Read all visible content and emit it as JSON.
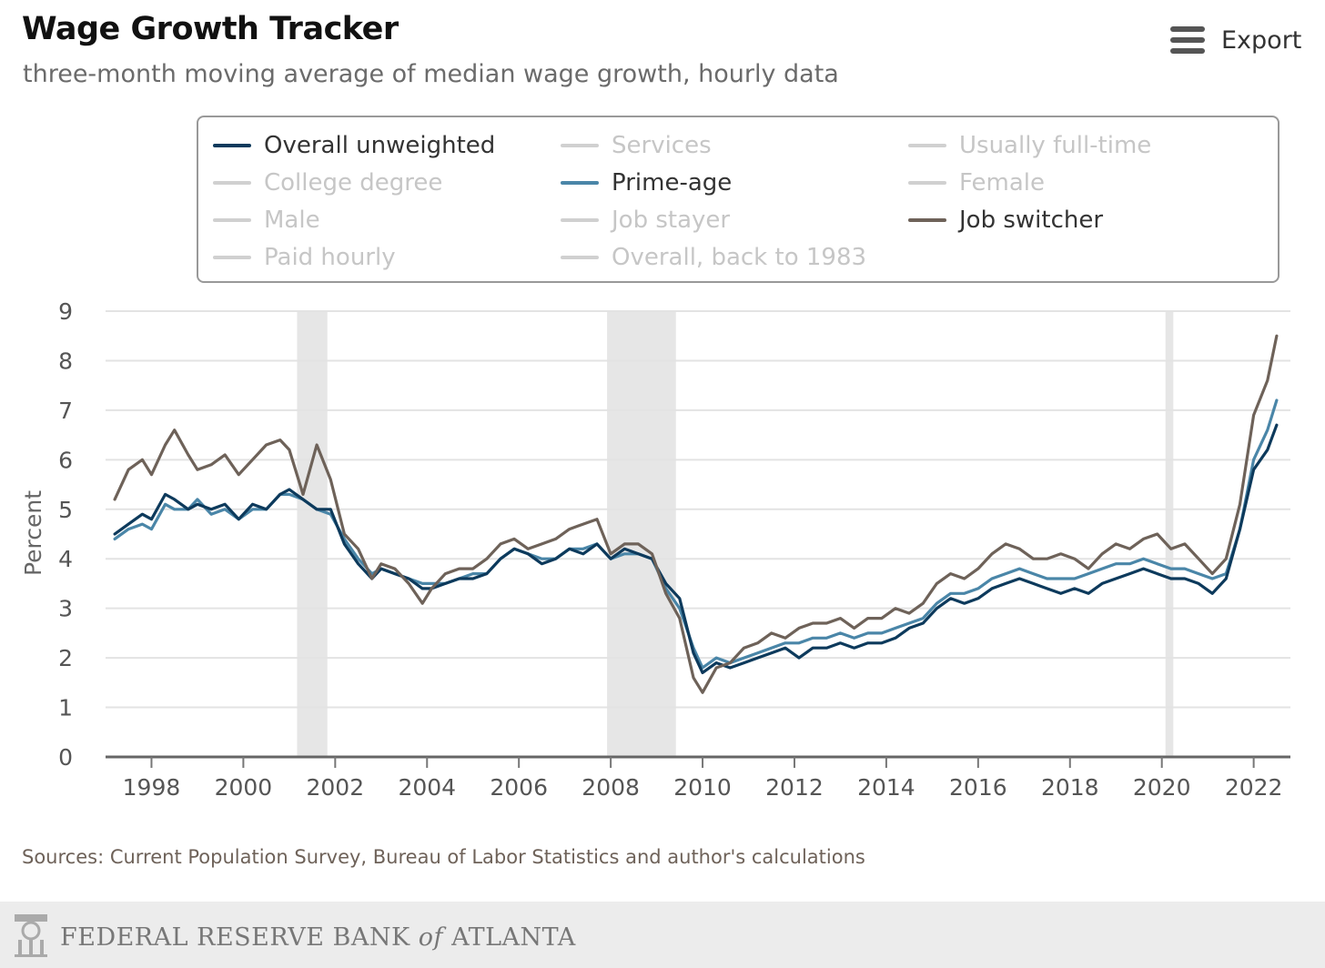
{
  "header": {
    "title": "Wage Growth Tracker",
    "subtitle": "three-month moving average of median wage growth, hourly data",
    "export_label": "Export",
    "menu_icon": "hamburger-menu-icon"
  },
  "legend": {
    "items": [
      {
        "label": "Overall unweighted",
        "active": true,
        "color": "#0d3a5c"
      },
      {
        "label": "Services",
        "active": false,
        "color": "#d0d0d0"
      },
      {
        "label": "Usually full-time",
        "active": false,
        "color": "#d0d0d0"
      },
      {
        "label": "College degree",
        "active": false,
        "color": "#d0d0d0"
      },
      {
        "label": "Prime-age",
        "active": true,
        "color": "#4a86a8"
      },
      {
        "label": "Female",
        "active": false,
        "color": "#d0d0d0"
      },
      {
        "label": "Male",
        "active": false,
        "color": "#d0d0d0"
      },
      {
        "label": "Job stayer",
        "active": false,
        "color": "#d0d0d0"
      },
      {
        "label": "Job switcher",
        "active": true,
        "color": "#6e6259"
      },
      {
        "label": "Paid hourly",
        "active": false,
        "color": "#d0d0d0"
      },
      {
        "label": "Overall, back to 1983",
        "active": false,
        "color": "#d0d0d0"
      }
    ]
  },
  "chart_data": {
    "type": "line",
    "title": "Wage Growth Tracker",
    "subtitle": "three-month moving average of median wage growth, hourly data",
    "ylabel": "Percent",
    "xlabel": "",
    "ylim": [
      0,
      9
    ],
    "yticks": [
      0,
      1,
      2,
      3,
      4,
      5,
      6,
      7,
      8,
      9
    ],
    "xlim": [
      1997.0,
      2022.8
    ],
    "xticks": [
      1998,
      2000,
      2002,
      2004,
      2006,
      2008,
      2010,
      2012,
      2014,
      2016,
      2018,
      2020,
      2022
    ],
    "grid": true,
    "recessions": [
      [
        2001.17,
        2001.83
      ],
      [
        2007.92,
        2009.42
      ],
      [
        2020.08,
        2020.25
      ]
    ],
    "series": [
      {
        "name": "Overall unweighted",
        "color": "#0d3a5c",
        "x": [
          1997.2,
          1997.5,
          1997.8,
          1998.0,
          1998.3,
          1998.5,
          1998.8,
          1999.0,
          1999.3,
          1999.6,
          1999.9,
          2000.2,
          2000.5,
          2000.8,
          2001.0,
          2001.3,
          2001.6,
          2001.9,
          2002.2,
          2002.5,
          2002.8,
          2003.0,
          2003.3,
          2003.6,
          2003.9,
          2004.1,
          2004.4,
          2004.7,
          2005.0,
          2005.3,
          2005.6,
          2005.9,
          2006.2,
          2006.5,
          2006.8,
          2007.1,
          2007.4,
          2007.7,
          2008.0,
          2008.3,
          2008.6,
          2008.9,
          2009.2,
          2009.5,
          2009.8,
          2010.0,
          2010.3,
          2010.6,
          2010.9,
          2011.2,
          2011.5,
          2011.8,
          2012.1,
          2012.4,
          2012.7,
          2013.0,
          2013.3,
          2013.6,
          2013.9,
          2014.2,
          2014.5,
          2014.8,
          2015.1,
          2015.4,
          2015.7,
          2016.0,
          2016.3,
          2016.6,
          2016.9,
          2017.2,
          2017.5,
          2017.8,
          2018.1,
          2018.4,
          2018.7,
          2019.0,
          2019.3,
          2019.6,
          2019.9,
          2020.2,
          2020.5,
          2020.8,
          2021.1,
          2021.4,
          2021.7,
          2022.0,
          2022.3,
          2022.5
        ],
        "values": [
          4.5,
          4.7,
          4.9,
          4.8,
          5.3,
          5.2,
          5.0,
          5.1,
          5.0,
          5.1,
          4.8,
          5.1,
          5.0,
          5.3,
          5.4,
          5.2,
          5.0,
          5.0,
          4.3,
          3.9,
          3.6,
          3.8,
          3.7,
          3.6,
          3.4,
          3.4,
          3.5,
          3.6,
          3.6,
          3.7,
          4.0,
          4.2,
          4.1,
          3.9,
          4.0,
          4.2,
          4.1,
          4.3,
          4.0,
          4.2,
          4.1,
          4.0,
          3.5,
          3.2,
          2.1,
          1.7,
          1.9,
          1.8,
          1.9,
          2.0,
          2.1,
          2.2,
          2.0,
          2.2,
          2.2,
          2.3,
          2.2,
          2.3,
          2.3,
          2.4,
          2.6,
          2.7,
          3.0,
          3.2,
          3.1,
          3.2,
          3.4,
          3.5,
          3.6,
          3.5,
          3.4,
          3.3,
          3.4,
          3.3,
          3.5,
          3.6,
          3.7,
          3.8,
          3.7,
          3.6,
          3.6,
          3.5,
          3.3,
          3.6,
          4.6,
          5.8,
          6.2,
          6.7
        ]
      },
      {
        "name": "Prime-age",
        "color": "#4a86a8",
        "x": [
          1997.2,
          1997.5,
          1997.8,
          1998.0,
          1998.3,
          1998.5,
          1998.8,
          1999.0,
          1999.3,
          1999.6,
          1999.9,
          2000.2,
          2000.5,
          2000.8,
          2001.0,
          2001.3,
          2001.6,
          2001.9,
          2002.2,
          2002.5,
          2002.8,
          2003.0,
          2003.3,
          2003.6,
          2003.9,
          2004.1,
          2004.4,
          2004.7,
          2005.0,
          2005.3,
          2005.6,
          2005.9,
          2006.2,
          2006.5,
          2006.8,
          2007.1,
          2007.4,
          2007.7,
          2008.0,
          2008.3,
          2008.6,
          2008.9,
          2009.2,
          2009.5,
          2009.8,
          2010.0,
          2010.3,
          2010.6,
          2010.9,
          2011.2,
          2011.5,
          2011.8,
          2012.1,
          2012.4,
          2012.7,
          2013.0,
          2013.3,
          2013.6,
          2013.9,
          2014.2,
          2014.5,
          2014.8,
          2015.1,
          2015.4,
          2015.7,
          2016.0,
          2016.3,
          2016.6,
          2016.9,
          2017.2,
          2017.5,
          2017.8,
          2018.1,
          2018.4,
          2018.7,
          2019.0,
          2019.3,
          2019.6,
          2019.9,
          2020.2,
          2020.5,
          2020.8,
          2021.1,
          2021.4,
          2021.7,
          2022.0,
          2022.3,
          2022.5
        ],
        "values": [
          4.4,
          4.6,
          4.7,
          4.6,
          5.1,
          5.0,
          5.0,
          5.2,
          4.9,
          5.0,
          4.8,
          5.0,
          5.0,
          5.3,
          5.3,
          5.2,
          5.0,
          4.9,
          4.4,
          4.0,
          3.7,
          3.8,
          3.7,
          3.6,
          3.5,
          3.5,
          3.5,
          3.6,
          3.7,
          3.7,
          4.0,
          4.2,
          4.1,
          4.0,
          4.0,
          4.2,
          4.2,
          4.3,
          4.0,
          4.1,
          4.1,
          4.0,
          3.4,
          3.0,
          2.2,
          1.8,
          2.0,
          1.9,
          2.0,
          2.1,
          2.2,
          2.3,
          2.3,
          2.4,
          2.4,
          2.5,
          2.4,
          2.5,
          2.5,
          2.6,
          2.7,
          2.8,
          3.1,
          3.3,
          3.3,
          3.4,
          3.6,
          3.7,
          3.8,
          3.7,
          3.6,
          3.6,
          3.6,
          3.7,
          3.8,
          3.9,
          3.9,
          4.0,
          3.9,
          3.8,
          3.8,
          3.7,
          3.6,
          3.7,
          4.6,
          6.0,
          6.6,
          7.2
        ]
      },
      {
        "name": "Job switcher",
        "color": "#6e6259",
        "x": [
          1997.2,
          1997.5,
          1997.8,
          1998.0,
          1998.3,
          1998.5,
          1998.8,
          1999.0,
          1999.3,
          1999.6,
          1999.9,
          2000.2,
          2000.5,
          2000.8,
          2001.0,
          2001.3,
          2001.6,
          2001.9,
          2002.2,
          2002.5,
          2002.8,
          2003.0,
          2003.3,
          2003.6,
          2003.9,
          2004.1,
          2004.4,
          2004.7,
          2005.0,
          2005.3,
          2005.6,
          2005.9,
          2006.2,
          2006.5,
          2006.8,
          2007.1,
          2007.4,
          2007.7,
          2008.0,
          2008.3,
          2008.6,
          2008.9,
          2009.2,
          2009.5,
          2009.8,
          2010.0,
          2010.3,
          2010.6,
          2010.9,
          2011.2,
          2011.5,
          2011.8,
          2012.1,
          2012.4,
          2012.7,
          2013.0,
          2013.3,
          2013.6,
          2013.9,
          2014.2,
          2014.5,
          2014.8,
          2015.1,
          2015.4,
          2015.7,
          2016.0,
          2016.3,
          2016.6,
          2016.9,
          2017.2,
          2017.5,
          2017.8,
          2018.1,
          2018.4,
          2018.7,
          2019.0,
          2019.3,
          2019.6,
          2019.9,
          2020.2,
          2020.5,
          2020.8,
          2021.1,
          2021.4,
          2021.7,
          2022.0,
          2022.3,
          2022.5
        ],
        "values": [
          5.2,
          5.8,
          6.0,
          5.7,
          6.3,
          6.6,
          6.1,
          5.8,
          5.9,
          6.1,
          5.7,
          6.0,
          6.3,
          6.4,
          6.2,
          5.3,
          6.3,
          5.6,
          4.5,
          4.2,
          3.6,
          3.9,
          3.8,
          3.5,
          3.1,
          3.4,
          3.7,
          3.8,
          3.8,
          4.0,
          4.3,
          4.4,
          4.2,
          4.3,
          4.4,
          4.6,
          4.7,
          4.8,
          4.1,
          4.3,
          4.3,
          4.1,
          3.3,
          2.8,
          1.6,
          1.3,
          1.8,
          1.9,
          2.2,
          2.3,
          2.5,
          2.4,
          2.6,
          2.7,
          2.7,
          2.8,
          2.6,
          2.8,
          2.8,
          3.0,
          2.9,
          3.1,
          3.5,
          3.7,
          3.6,
          3.8,
          4.1,
          4.3,
          4.2,
          4.0,
          4.0,
          4.1,
          4.0,
          3.8,
          4.1,
          4.3,
          4.2,
          4.4,
          4.5,
          4.2,
          4.3,
          4.0,
          3.7,
          4.0,
          5.1,
          6.9,
          7.6,
          8.5
        ]
      }
    ]
  },
  "source": "Sources: Current Population Survey, Bureau of Labor Statistics and author's calculations",
  "footer": {
    "seal_icon": "federal-reserve-seal-icon",
    "text_pre": "FEDERAL RESERVE BANK ",
    "text_of": "of",
    "text_post": " ATLANTA"
  }
}
